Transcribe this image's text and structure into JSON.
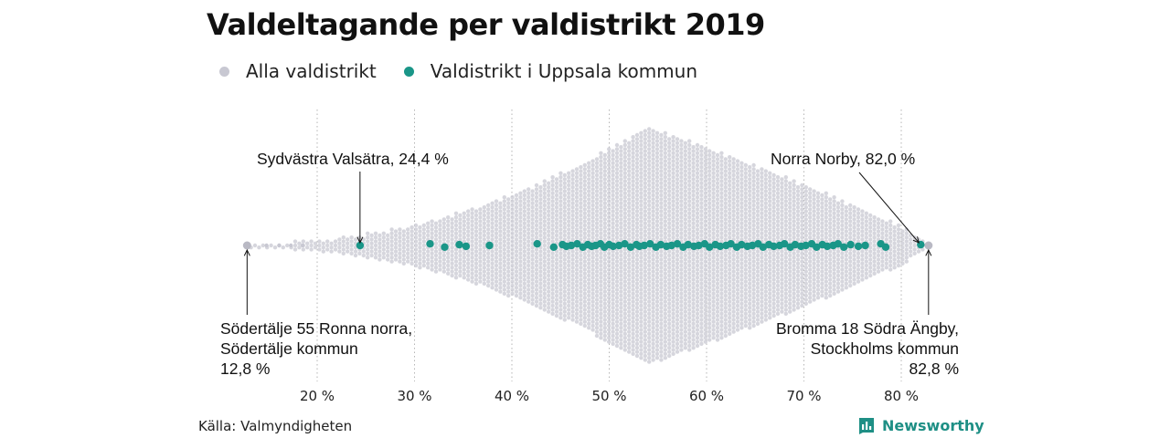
{
  "chart_data": {
    "type": "scatter",
    "subtype": "beeswarm",
    "title": "Valdeltagande per valdistrikt 2019",
    "xlim": [
      13,
      83
    ],
    "x_ticks": [
      "20 %",
      "30 %",
      "40 %",
      "50 %",
      "60 %",
      "70 %",
      "80 %"
    ],
    "x_tick_values": [
      20,
      30,
      40,
      50,
      60,
      70,
      80
    ],
    "grid": "vertical dotted",
    "legend_position": "top-left",
    "series": [
      {
        "name": "Alla valdistrikt",
        "color": "#c8c8d2",
        "min": 12.8,
        "max": 82.8,
        "peak": 54,
        "values": [
          12.8,
          82.8
        ]
      },
      {
        "name": "Valdistrikt i Uppsala kommun",
        "color": "#1a9688",
        "values": [
          24.4,
          31.6,
          33.1,
          34.6,
          35.3,
          37.7,
          42.6,
          44.3,
          45.2,
          45.6,
          46.1,
          46.7,
          47.3,
          47.8,
          48.2,
          48.6,
          49.1,
          49.5,
          50.0,
          50.4,
          51.0,
          51.6,
          52.2,
          52.8,
          53.1,
          53.6,
          54.2,
          54.8,
          55.3,
          55.9,
          56.4,
          57.0,
          57.6,
          58.1,
          58.7,
          59.2,
          59.8,
          60.3,
          60.9,
          61.4,
          62.0,
          62.5,
          63.1,
          63.6,
          64.2,
          64.7,
          65.3,
          65.8,
          66.4,
          66.9,
          67.5,
          68.0,
          68.6,
          69.1,
          69.7,
          70.2,
          70.8,
          71.3,
          71.9,
          72.4,
          73.0,
          73.5,
          74.1,
          74.8,
          75.6,
          76.3,
          77.9,
          78.4,
          82.0
        ]
      }
    ],
    "annotations": {
      "min_label": [
        "Södertälje 55 Ronna norra,",
        "Södertälje kommun",
        "12,8 %"
      ],
      "max_label": [
        "Bromma 18 Södra Ängby,",
        "Stockholms kommun",
        "82,8 %"
      ],
      "uppsala_min_label": "Sydvästra Valsätra, 24,4 %",
      "uppsala_max_label": "Norra Norby, 82,0 %"
    }
  },
  "legend": {
    "all_label": "Alla valdistrikt",
    "uppsala_label": "Valdistrikt i Uppsala kommun",
    "all_color": "#c8c8d2",
    "uppsala_color": "#1a9688"
  },
  "footer": {
    "source": "Källa: Valmyndigheten",
    "brand": "Newsworthy",
    "brand_icon": "bar-chart-logo-icon"
  }
}
